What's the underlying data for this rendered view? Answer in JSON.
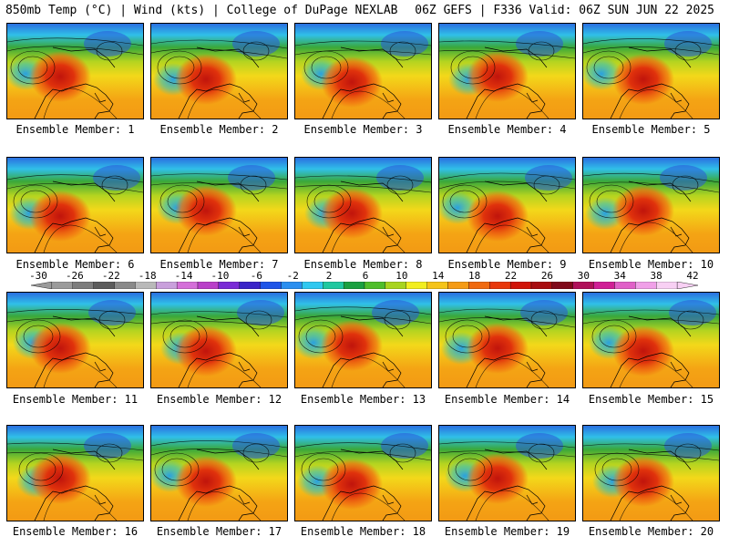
{
  "header": {
    "left": "850mb Temp (°C) | Wind (kts) | College of DuPage NEXLAB",
    "right": "06Z GEFS | F336 Valid: 06Z SUN JUN 22 2025"
  },
  "members": [
    {
      "label": "Ensemble Member: 1"
    },
    {
      "label": "Ensemble Member: 2"
    },
    {
      "label": "Ensemble Member: 3"
    },
    {
      "label": "Ensemble Member: 4"
    },
    {
      "label": "Ensemble Member: 5"
    },
    {
      "label": "Ensemble Member: 6"
    },
    {
      "label": "Ensemble Member: 7"
    },
    {
      "label": "Ensemble Member: 8"
    },
    {
      "label": "Ensemble Member: 9"
    },
    {
      "label": "Ensemble Member: 10"
    },
    {
      "label": "Ensemble Member: 11"
    },
    {
      "label": "Ensemble Member: 12"
    },
    {
      "label": "Ensemble Member: 13"
    },
    {
      "label": "Ensemble Member: 14"
    },
    {
      "label": "Ensemble Member: 15"
    },
    {
      "label": "Ensemble Member: 16"
    },
    {
      "label": "Ensemble Member: 17"
    },
    {
      "label": "Ensemble Member: 18"
    },
    {
      "label": "Ensemble Member: 19"
    },
    {
      "label": "Ensemble Member: 20"
    }
  ],
  "colorbar": {
    "labels": [
      "-30",
      "-26",
      "-22",
      "-18",
      "-14",
      "-10",
      "-6",
      "-2",
      "2",
      "6",
      "10",
      "14",
      "18",
      "22",
      "26",
      "30",
      "34",
      "38",
      "42"
    ],
    "colors": [
      "#9b9b9b",
      "#7d7d7d",
      "#5c5c5c",
      "#8a8a8a",
      "#b9b9b9",
      "#c9a0dc",
      "#d46fd9",
      "#b940c9",
      "#7a2bd6",
      "#3a24c8",
      "#1f55e8",
      "#2a8ff0",
      "#30c8f0",
      "#20c8a0",
      "#1aa040",
      "#4fbe2a",
      "#a8d41e",
      "#f2ee20",
      "#f5c419",
      "#f59b14",
      "#f06a10",
      "#e8380c",
      "#d0150a",
      "#a80c10",
      "#80081a",
      "#b0105a",
      "#d01e96",
      "#e060c8",
      "#f0a0e8",
      "#f8d0f4"
    ]
  }
}
